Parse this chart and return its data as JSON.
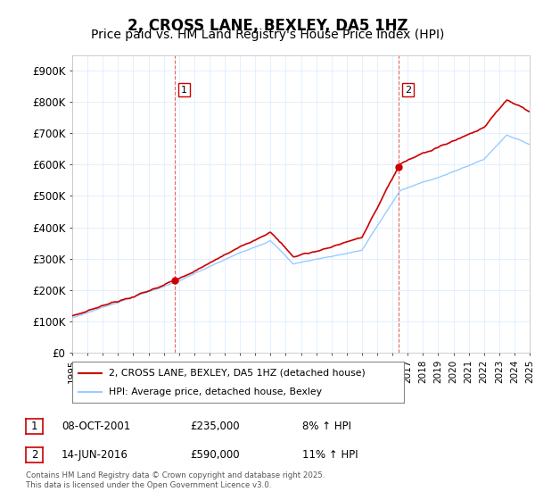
{
  "title": "2, CROSS LANE, BEXLEY, DA5 1HZ",
  "subtitle": "Price paid vs. HM Land Registry's House Price Index (HPI)",
  "ylim": [
    0,
    950000
  ],
  "yticks": [
    0,
    100000,
    200000,
    300000,
    400000,
    500000,
    600000,
    700000,
    800000,
    900000
  ],
  "ytick_labels": [
    "£0",
    "£100K",
    "£200K",
    "£300K",
    "£400K",
    "£500K",
    "£600K",
    "£700K",
    "£800K",
    "£900K"
  ],
  "line1_color": "#cc0000",
  "line2_color": "#99ccff",
  "vline_color": "#cc0000",
  "legend1": "2, CROSS LANE, BEXLEY, DA5 1HZ (detached house)",
  "legend2": "HPI: Average price, detached house, Bexley",
  "footnote": "Contains HM Land Registry data © Crown copyright and database right 2025.\nThis data is licensed under the Open Government Licence v3.0.",
  "background_color": "#ffffff",
  "grid_color": "#ddeeff",
  "title_fontsize": 12,
  "subtitle_fontsize": 10,
  "sale1_year": 2001.75,
  "sale1_price": 235000,
  "sale2_year": 2016.42,
  "sale2_price": 590000,
  "xmin": 1995,
  "xmax": 2025
}
